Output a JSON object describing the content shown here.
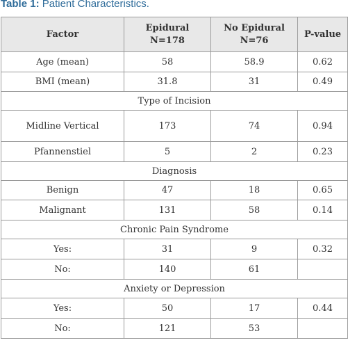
{
  "caption": {
    "label": "Table 1:",
    "text": " Patient Characteristics."
  },
  "table": {
    "headers": {
      "factor": "Factor",
      "epidural_line1": "Epidural",
      "epidural_line2": "N=178",
      "no_epidural_line1": "No Epidural",
      "no_epidural_line2": "N=76",
      "pvalue": "P-value"
    },
    "rows": {
      "age": {
        "factor": "Age (mean)",
        "epidural": "58",
        "no_epidural": "58.9",
        "p": "0.62"
      },
      "bmi": {
        "factor": "BMI (mean)",
        "epidural": "31.8",
        "no_epidural": "31",
        "p": "0.49"
      },
      "incision_section": "Type of Incision",
      "midline": {
        "factor": "Midline Vertical",
        "epidural": "173",
        "no_epidural": "74",
        "p": "0.94"
      },
      "pfannenstiel": {
        "factor": "Pfannenstiel",
        "epidural": "5",
        "no_epidural": "2",
        "p": "0.23"
      },
      "diagnosis_section": "Diagnosis",
      "benign": {
        "factor": "Benign",
        "epidural": "47",
        "no_epidural": "18",
        "p": "0.65"
      },
      "malignant": {
        "factor": "Malignant",
        "epidural": "131",
        "no_epidural": "58",
        "p": "0.14"
      },
      "pain_section": "Chronic Pain Syndrome",
      "pain_yes": {
        "factor": "Yes:",
        "epidural": "31",
        "no_epidural": "9",
        "p": "0.32"
      },
      "pain_no": {
        "factor": "No:",
        "epidural": "140",
        "no_epidural": "61",
        "p": ""
      },
      "anxiety_section": "Anxiety or Depression",
      "anxiety_yes": {
        "factor": "Yes:",
        "epidural": "50",
        "no_epidural": "17",
        "p": "0.44"
      },
      "anxiety_no": {
        "factor": "No:",
        "epidural": "121",
        "no_epidural": "53",
        "p": ""
      }
    }
  }
}
